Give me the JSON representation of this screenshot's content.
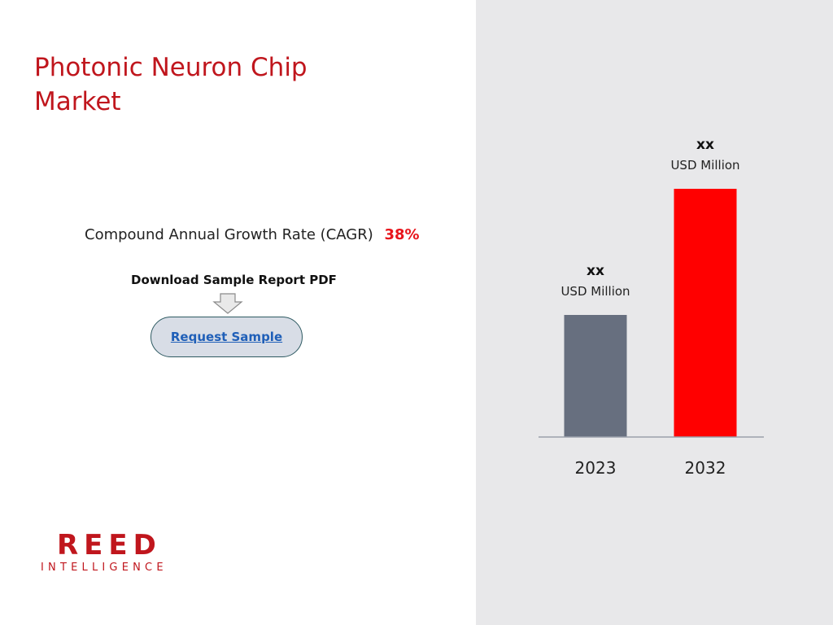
{
  "page": {
    "title": "Photonic Neuron Chip Market",
    "cagr_label": "Compound Annual Growth Rate (CAGR)",
    "cagr_value": "38%",
    "download_label": "Download Sample Report PDF",
    "request_button": "Request Sample",
    "arrow_icon": "down-arrow-icon"
  },
  "logo": {
    "line1": "REED",
    "line2": "INTELLIGENCE"
  },
  "colors": {
    "accent": "#c0161d",
    "bar_2023": "#676f7f",
    "bar_2032": "#ff0000",
    "panel_bg": "#e8e8ea"
  },
  "chart_data": {
    "type": "bar",
    "categories": [
      "2023",
      "2032"
    ],
    "values": [
      1,
      2
    ],
    "value_labels": [
      "xx",
      "xx"
    ],
    "unit_labels": [
      "USD Million",
      "USD Million"
    ],
    "colors": [
      "#676f7f",
      "#ff0000"
    ],
    "title": "",
    "xlabel": "",
    "ylabel": "",
    "grid": false
  }
}
